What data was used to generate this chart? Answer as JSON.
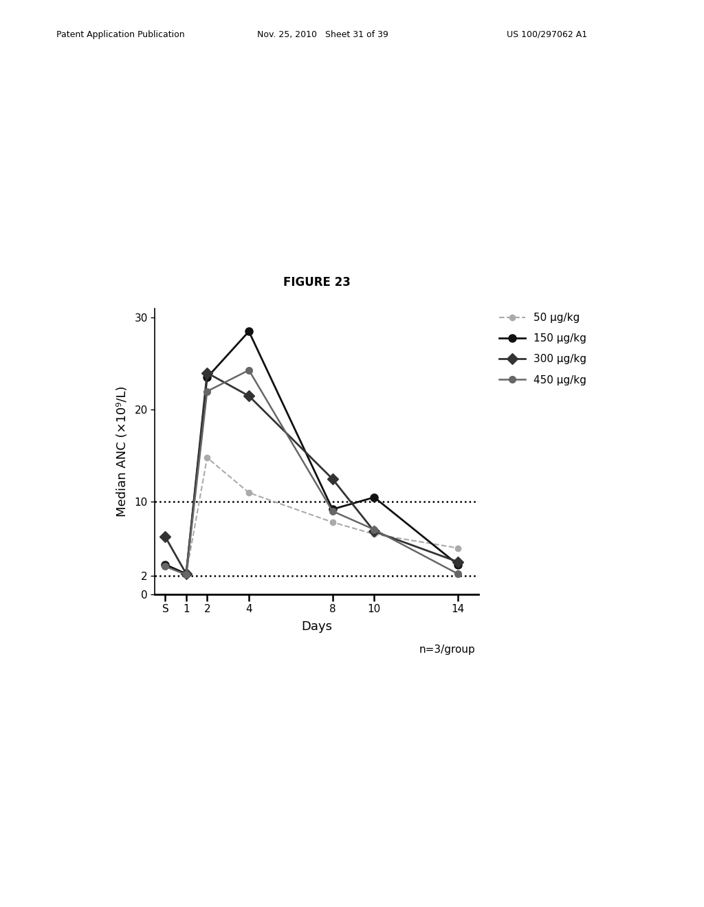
{
  "title": "FIGURE 23",
  "xlabel": "Days",
  "ylabel": "Median ANC (×10⁹/L)",
  "x_ticks_labels": [
    "S",
    "1",
    "2",
    "4",
    "8",
    "10",
    "14"
  ],
  "x_ticks_pos": [
    0,
    1,
    2,
    4,
    8,
    10,
    14
  ],
  "xlim": [
    -0.5,
    15.0
  ],
  "ylim": [
    0,
    31
  ],
  "y_ticks": [
    0,
    2,
    10,
    20,
    30
  ],
  "hlines": [
    2,
    10
  ],
  "n_label": "n=3/group",
  "series": [
    {
      "label": "50 μg/kg",
      "color": "#aaaaaa",
      "linewidth": 1.5,
      "marker": "o",
      "marker_size": 6,
      "linestyle": "--",
      "x": [
        0,
        1,
        2,
        4,
        8,
        10,
        14
      ],
      "y": [
        3.0,
        2.2,
        14.8,
        11.0,
        7.8,
        6.5,
        5.0
      ]
    },
    {
      "label": "150 μg/kg",
      "color": "#111111",
      "linewidth": 2.0,
      "marker": "o",
      "marker_size": 8,
      "linestyle": "-",
      "x": [
        0,
        1,
        2,
        4,
        8,
        10,
        14
      ],
      "y": [
        3.2,
        2.2,
        23.5,
        28.5,
        9.2,
        10.5,
        3.2
      ]
    },
    {
      "label": "300 μg/kg",
      "color": "#333333",
      "linewidth": 2.0,
      "marker": "D",
      "marker_size": 8,
      "linestyle": "-",
      "x": [
        0,
        1,
        2,
        4,
        8,
        10,
        14
      ],
      "y": [
        6.2,
        2.2,
        24.0,
        21.5,
        12.5,
        6.8,
        3.5
      ]
    },
    {
      "label": "450 μg/kg",
      "color": "#666666",
      "linewidth": 1.8,
      "marker": "o",
      "marker_size": 7,
      "linestyle": "-",
      "x": [
        0,
        1,
        2,
        4,
        8,
        10,
        14
      ],
      "y": [
        3.0,
        2.1,
        22.0,
        24.3,
        9.0,
        7.0,
        2.2
      ]
    }
  ],
  "background_color": "#ffffff",
  "figure_title_fontsize": 12,
  "axis_label_fontsize": 13,
  "tick_fontsize": 11,
  "legend_fontsize": 11,
  "header_left": "Patent Application Publication",
  "header_mid": "Nov. 25, 2010   Sheet 31 of 39",
  "header_right": "US 100/297062 A1"
}
